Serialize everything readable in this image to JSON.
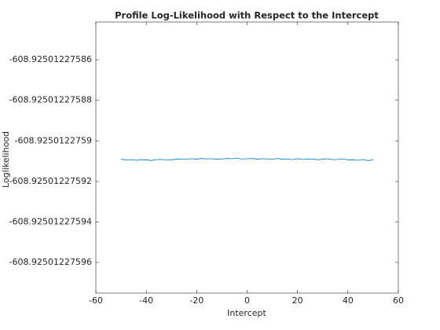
{
  "chart_data": {
    "type": "line",
    "title": "Profile Log-Likelihood with Respect to the Intercept",
    "x_label": "Intercept",
    "y_label": "Loglikelihood",
    "x": [
      -50,
      -48,
      -46,
      -44,
      -42,
      -40,
      -38,
      -36,
      -34,
      -32,
      -30,
      -28,
      -26,
      -24,
      -22,
      -20,
      -18,
      -16,
      -14,
      -12,
      -10,
      -8,
      -6,
      -4,
      -2,
      0,
      2,
      4,
      6,
      8,
      10,
      12,
      14,
      16,
      18,
      20,
      22,
      24,
      26,
      28,
      30,
      32,
      34,
      36,
      38,
      40,
      42,
      44,
      46,
      48,
      50
    ],
    "series": [
      {
        "color": "#0072bd",
        "values": [
          -608.925012275909,
          -608.9250122759095,
          -608.9250122759092,
          -608.9250122759096,
          -608.9250122759094,
          -608.9250122759094,
          -608.9250122759097,
          -608.9250122759092,
          -608.9250122759091,
          -608.9250122759095,
          -608.9250122759094,
          -608.925012275909,
          -608.9250122759089,
          -608.9250122759091,
          -608.9250122759088,
          -608.925012275909,
          -608.9250122759087,
          -608.9250122759089,
          -608.9250122759088,
          -608.925012275909,
          -608.9250122759089,
          -608.9250122759087,
          -608.9250122759088,
          -608.9250122759086,
          -608.9250122759089,
          -608.9250122759088,
          -608.9250122759087,
          -608.925012275909,
          -608.9250122759088,
          -608.9250122759089,
          -608.9250122759091,
          -608.9250122759087,
          -608.925012275909,
          -608.9250122759089,
          -608.9250122759092,
          -608.9250122759088,
          -608.9250122759091,
          -608.925012275909,
          -608.9250122759089,
          -608.9250122759094,
          -608.925012275909,
          -608.9250122759088,
          -608.9250122759092,
          -608.9250122759091,
          -608.9250122759089,
          -608.9250122759094,
          -608.9250122759094,
          -608.9250122759096,
          -608.9250122759092,
          -608.9250122759097,
          -608.9250122759094
        ]
      }
    ],
    "xlim": [
      -60,
      60
    ],
    "xticks": [
      -60,
      -40,
      -20,
      0,
      20,
      40,
      60
    ],
    "ylim": [
      -608.9250122759751,
      -608.9250122758414
    ],
    "yticks": [
      -608.92501227596,
      -608.92501227594,
      -608.92501227592,
      -608.9250122759,
      -608.92501227588,
      -608.92501227586
    ],
    "grid": false
  }
}
